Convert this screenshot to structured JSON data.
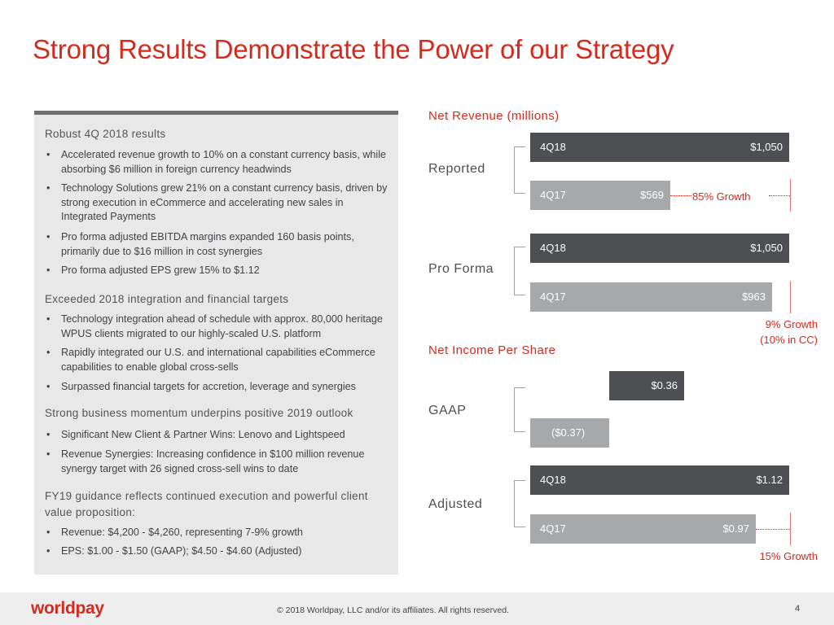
{
  "title": "Strong Results Demonstrate the Power of our Strategy",
  "left_panel": {
    "s1_header": "Robust 4Q 2018 results",
    "s1_b1": "Accelerated revenue growth to 10% on a constant currency basis, while absorbing $6 million in foreign currency headwinds",
    "s1_b2": "Technology Solutions grew 21% on a constant currency basis, driven by strong execution in eCommerce and accelerating new sales in Integrated Payments",
    "s1_b3": "Pro forma adjusted EBITDA margins expanded 160 basis points, primarily due to $16 million in cost synergies",
    "s1_b4": "Pro forma adjusted EPS grew 15% to $1.12",
    "s2_header": "Exceeded 2018 integration and financial targets",
    "s2_b1": "Technology integration ahead of schedule with approx. 80,000 heritage WPUS clients migrated to our highly-scaled U.S. platform",
    "s2_b2": "Rapidly integrated our U.S. and international capabilities eCommerce capabilities to enable global cross-sells",
    "s2_b3": "Surpassed financial targets for accretion, leverage and synergies",
    "s3_header": "Strong business momentum underpins positive 2019 outlook",
    "s3_b1": "Significant New Client & Partner  Wins: Lenovo and Lightspeed",
    "s3_b2": "Revenue Synergies: Increasing confidence in $100 million revenue synergy target with 26 signed cross-sell wins to date",
    "s4_header": "FY19 guidance reflects continued execution and powerful client value proposition:",
    "s4_b1": "Revenue: $4,200 - $4,260, representing 7-9% growth",
    "s4_b2": "EPS: $1.00 - $1.50 (GAAP); $4.50 - $4.60 (Adjusted)",
    "bullet": "•"
  },
  "chart_data": [
    {
      "type": "bar",
      "title": "Net Revenue (millions)",
      "groups": [
        {
          "name": "Reported",
          "bars": [
            {
              "label": "4Q18",
              "value": 1050,
              "display": "$1,050"
            },
            {
              "label": "4Q17",
              "value": 569,
              "display": "$569"
            }
          ],
          "annotation": "85% Growth"
        },
        {
          "name": "Pro Forma",
          "bars": [
            {
              "label": "4Q18",
              "value": 1050,
              "display": "$1,050"
            },
            {
              "label": "4Q17",
              "value": 963,
              "display": "$963"
            }
          ],
          "annotation": "9% Growth\n(10% in CC)"
        }
      ]
    },
    {
      "type": "bar",
      "title": "Net Income Per Share",
      "groups": [
        {
          "name": "GAAP",
          "bars": [
            {
              "label": "",
              "value": 0.36,
              "display": "$0.36"
            },
            {
              "label": "",
              "value": -0.37,
              "display": "($0.37)"
            }
          ]
        },
        {
          "name": "Adjusted",
          "bars": [
            {
              "label": "4Q18",
              "value": 1.12,
              "display": "$1.12"
            },
            {
              "label": "4Q17",
              "value": 0.97,
              "display": "$0.97"
            }
          ],
          "annotation": "15% Growth"
        }
      ]
    }
  ],
  "labels": {
    "net_revenue_title": "Net Revenue (millions)",
    "reported": "Reported",
    "pro_forma": "Pro Forma",
    "eps_title": "Net Income Per Share",
    "gaap": "GAAP",
    "adjusted": "Adjusted",
    "q18": "4Q18",
    "q17": "4Q17",
    "rep_q18_val": "$1,050",
    "rep_q17_val": "$569",
    "pf_q18_val": "$1,050",
    "pf_q17_val": "$963",
    "gaap_q18_val": "$0.36",
    "gaap_q17_val": "($0.37)",
    "adj_q18_val": "$1.12",
    "adj_q17_val": "$0.97",
    "growth_85": "85% Growth",
    "growth_9": "9% Growth",
    "growth_10cc": "(10% in CC)",
    "growth_15": "15% Growth"
  },
  "footer": {
    "logo": "worldpay",
    "copyright": "© 2018 Worldpay, LLC and/or its affiliates.  All rights reserved.",
    "page": "4"
  },
  "colors": {
    "accent": "#d52b1e",
    "dark_bar": "#4d4f53",
    "light_bar": "#a7a8aa",
    "panel": "#e8e8e8"
  }
}
